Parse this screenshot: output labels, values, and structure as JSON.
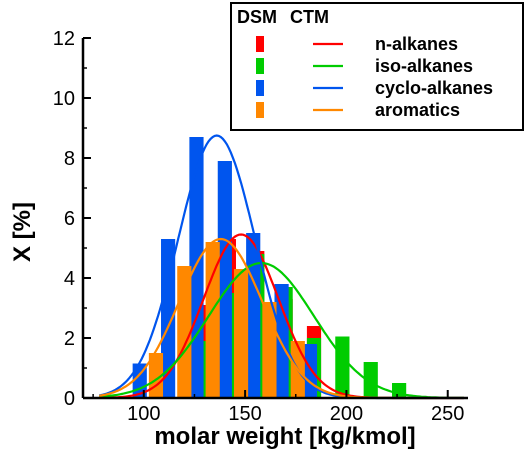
{
  "chart_data": {
    "type": "bar",
    "xlabel": "molar weight [kg/kmol]",
    "ylabel": "X [%]",
    "xlim": [
      70,
      260
    ],
    "ylim": [
      0,
      12
    ],
    "xticks": [
      100,
      150,
      200,
      250
    ],
    "yticks": [
      0,
      2,
      4,
      6,
      8,
      10,
      12
    ],
    "legend": {
      "placement": "top-right",
      "header_dsm": "DSM",
      "header_ctm": "CTM"
    },
    "series": [
      {
        "name": "n-alkanes",
        "color": "#ff0000",
        "dsm": [
          {
            "x": 128,
            "y": 3.1
          },
          {
            "x": 142,
            "y": 5.3
          },
          {
            "x": 156,
            "y": 4.9
          },
          {
            "x": 170,
            "y": 3.3
          },
          {
            "x": 184,
            "y": 2.4
          }
        ],
        "ctm": {
          "mean": 148,
          "sd": 18.5,
          "peak": 5.45
        }
      },
      {
        "name": "iso-alkanes",
        "color": "#00cc00",
        "dsm": [
          {
            "x": 128,
            "y": 1.9
          },
          {
            "x": 142,
            "y": 3.5
          },
          {
            "x": 156,
            "y": 4.8
          },
          {
            "x": 170,
            "y": 3.7
          },
          {
            "x": 184,
            "y": 2.0
          },
          {
            "x": 198,
            "y": 2.05
          },
          {
            "x": 212,
            "y": 1.2
          },
          {
            "x": 226,
            "y": 0.5
          }
        ],
        "ctm": {
          "mean": 158,
          "sd": 26,
          "peak": 4.5
        }
      },
      {
        "name": "cyclo-alkanes",
        "color": "#0055ee",
        "dsm": [
          {
            "x": 98,
            "y": 1.15
          },
          {
            "x": 112,
            "y": 5.3
          },
          {
            "x": 126,
            "y": 8.7
          },
          {
            "x": 140,
            "y": 7.9
          },
          {
            "x": 154,
            "y": 5.5
          },
          {
            "x": 168,
            "y": 3.8
          },
          {
            "x": 182,
            "y": 1.8
          }
        ],
        "ctm": {
          "mean": 136,
          "sd": 19,
          "peak": 8.75
        }
      },
      {
        "name": "aromatics",
        "color": "#ff8800",
        "dsm": [
          {
            "x": 106,
            "y": 1.5
          },
          {
            "x": 120,
            "y": 4.4
          },
          {
            "x": 134,
            "y": 5.2
          },
          {
            "x": 148,
            "y": 4.3
          },
          {
            "x": 162,
            "y": 3.2
          },
          {
            "x": 176,
            "y": 1.9
          }
        ],
        "ctm": {
          "mean": 138,
          "sd": 20.5,
          "peak": 5.3
        }
      }
    ]
  }
}
